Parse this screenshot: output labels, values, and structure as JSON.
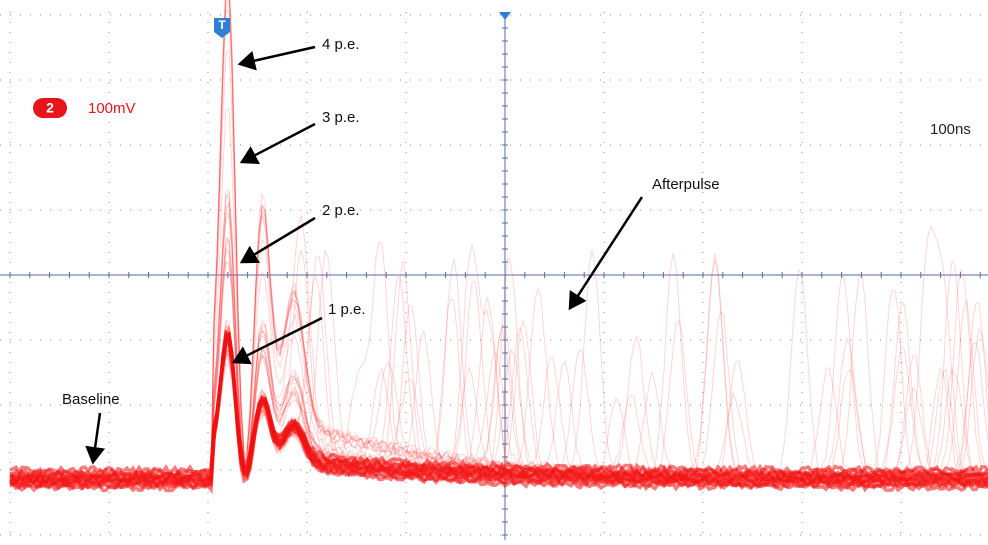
{
  "trigger_marker": "T",
  "channel": {
    "number": "2",
    "scale": "100mV"
  },
  "timebase": "100ns",
  "annotations": {
    "pe4": "4 p.e.",
    "pe3": "3 p.e.",
    "pe2": "2 p.e.",
    "pe1": "1 p.e.",
    "afterpulse": "Afterpulse",
    "baseline": "Baseline"
  }
}
